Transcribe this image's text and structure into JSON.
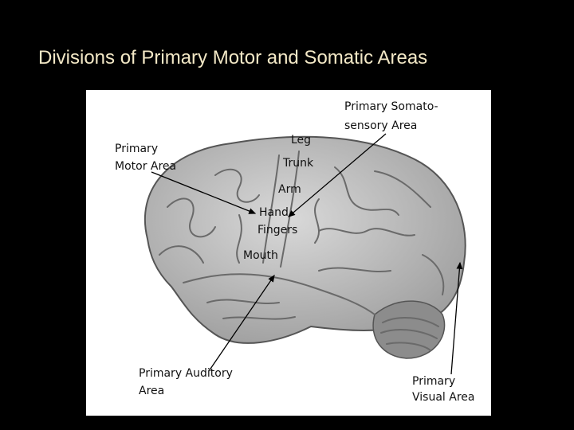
{
  "title": "Divisions of Primary Motor and Somatic Areas",
  "labels": [
    {
      "lines": [
        "Primary Somato-",
        "sensory Area"
      ]
    },
    {
      "lines": [
        "Leg"
      ]
    },
    {
      "lines": [
        "Primary",
        "Motor Area"
      ]
    },
    {
      "lines": [
        "Trunk"
      ]
    },
    {
      "lines": [
        "Arm"
      ]
    },
    {
      "lines": [
        "Hand"
      ]
    },
    {
      "lines": [
        "Fingers"
      ]
    },
    {
      "lines": [
        "Mouth"
      ]
    },
    {
      "lines": [
        "Primary Auditory",
        "Area"
      ]
    },
    {
      "lines": [
        "Primary",
        "Visual Area"
      ]
    }
  ]
}
